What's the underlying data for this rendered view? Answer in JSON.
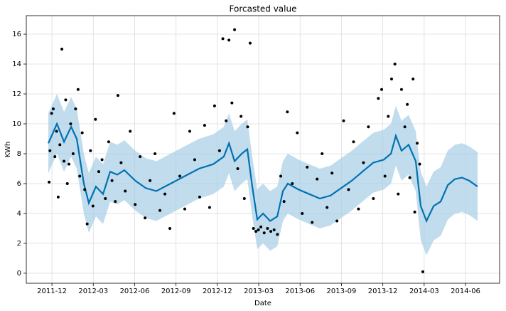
{
  "chart_data": {
    "type": "line",
    "title": "Forcasted value",
    "x_label": "Date",
    "y_label": "KWh",
    "grid": true,
    "xlim": [
      2011.762,
      2014.623
    ],
    "ylim": [
      -0.67,
      17.24
    ],
    "yticks": [
      0,
      2,
      4,
      6,
      8,
      10,
      12,
      14,
      16
    ],
    "xticks": [
      {
        "value": 2011.917,
        "label": "2011-12"
      },
      {
        "value": 2012.167,
        "label": "2012-03"
      },
      {
        "value": 2012.417,
        "label": "2012-06"
      },
      {
        "value": 2012.667,
        "label": "2012-09"
      },
      {
        "value": 2012.917,
        "label": "2012-12"
      },
      {
        "value": 2013.167,
        "label": "2013-03"
      },
      {
        "value": 2013.417,
        "label": "2013-06"
      },
      {
        "value": 2013.667,
        "label": "2013-09"
      },
      {
        "value": 2013.917,
        "label": "2013-12"
      },
      {
        "value": 2014.167,
        "label": "2014-03"
      },
      {
        "value": 2014.417,
        "label": "2014-06"
      }
    ],
    "forecast": {
      "color": "#0072b2",
      "band_color": "#a6cde6",
      "x": [
        2011.895,
        2011.947,
        2011.99,
        2012.033,
        2012.067,
        2012.11,
        2012.14,
        2012.183,
        2012.226,
        2012.269,
        2012.312,
        2012.355,
        2012.42,
        2012.484,
        2012.548,
        2012.634,
        2012.72,
        2012.806,
        2012.892,
        2012.956,
        2012.987,
        2013.021,
        2013.064,
        2013.098,
        2013.128,
        2013.158,
        2013.193,
        2013.236,
        2013.279,
        2013.313,
        2013.343,
        2013.408,
        2013.472,
        2013.536,
        2013.601,
        2013.665,
        2013.73,
        2013.794,
        2013.859,
        2013.923,
        2013.966,
        2013.996,
        2014.03,
        2014.073,
        2014.116,
        2014.146,
        2014.181,
        2014.224,
        2014.267,
        2014.31,
        2014.353,
        2014.396,
        2014.439,
        2014.49
      ],
      "values": [
        8.7,
        10.0,
        8.8,
        9.8,
        9.0,
        6.0,
        4.7,
        5.8,
        5.3,
        6.8,
        6.6,
        6.9,
        6.2,
        5.7,
        5.5,
        6.0,
        6.5,
        7.0,
        7.3,
        7.8,
        8.7,
        7.5,
        8.0,
        8.3,
        5.8,
        3.6,
        4.0,
        3.5,
        3.8,
        5.5,
        6.0,
        5.6,
        5.3,
        5.0,
        5.2,
        5.7,
        6.2,
        6.8,
        7.4,
        7.6,
        8.0,
        9.2,
        8.2,
        8.6,
        7.5,
        4.5,
        3.5,
        4.5,
        4.8,
        5.9,
        6.3,
        6.4,
        6.2,
        5.8
      ],
      "lower": [
        6.7,
        8.0,
        6.8,
        7.8,
        7.0,
        4.0,
        2.7,
        3.8,
        3.3,
        4.8,
        4.6,
        4.9,
        4.2,
        3.7,
        3.5,
        4.0,
        4.5,
        5.0,
        5.3,
        5.8,
        6.7,
        5.5,
        6.0,
        6.3,
        3.8,
        1.6,
        2.0,
        1.5,
        1.8,
        3.5,
        4.0,
        3.6,
        3.3,
        3.0,
        3.2,
        3.7,
        4.2,
        4.8,
        5.4,
        5.6,
        6.0,
        7.2,
        6.2,
        6.6,
        5.5,
        2.2,
        1.2,
        2.2,
        2.5,
        3.6,
        4.0,
        4.1,
        3.9,
        3.5
      ],
      "upper": [
        10.7,
        12.0,
        10.8,
        11.8,
        11.0,
        8.0,
        6.7,
        7.8,
        7.3,
        8.8,
        8.6,
        8.9,
        8.2,
        7.7,
        7.5,
        8.0,
        8.5,
        9.0,
        9.3,
        9.8,
        10.7,
        9.5,
        10.0,
        10.3,
        7.8,
        5.6,
        6.0,
        5.5,
        5.8,
        7.5,
        8.0,
        7.6,
        7.3,
        7.0,
        7.2,
        7.7,
        8.2,
        8.8,
        9.4,
        9.6,
        10.0,
        11.2,
        10.2,
        10.6,
        9.5,
        6.8,
        5.8,
        6.8,
        7.1,
        8.2,
        8.6,
        8.7,
        8.5,
        8.1
      ]
    },
    "observed": {
      "color": "#000000",
      "x": [
        2011.9,
        2011.905,
        2011.915,
        2011.925,
        2011.935,
        2011.945,
        2011.955,
        2011.965,
        2011.977,
        2011.99,
        2012.0,
        2012.01,
        2012.02,
        2012.03,
        2012.045,
        2012.06,
        2012.075,
        2012.085,
        2012.1,
        2012.115,
        2012.13,
        2012.15,
        2012.165,
        2012.18,
        2012.2,
        2012.22,
        2012.24,
        2012.26,
        2012.28,
        2012.3,
        2012.316,
        2012.335,
        2012.36,
        2012.39,
        2012.42,
        2012.45,
        2012.48,
        2012.51,
        2012.54,
        2012.57,
        2012.6,
        2012.63,
        2012.655,
        2012.69,
        2012.72,
        2012.75,
        2012.78,
        2012.81,
        2012.84,
        2012.87,
        2012.9,
        2012.93,
        2012.95,
        2012.97,
        2012.987,
        2013.005,
        2013.021,
        2013.04,
        2013.06,
        2013.08,
        2013.1,
        2013.115,
        2013.135,
        2013.15,
        2013.165,
        2013.18,
        2013.2,
        2013.22,
        2013.24,
        2013.26,
        2013.28,
        2013.3,
        2013.32,
        2013.34,
        2013.37,
        2013.4,
        2013.43,
        2013.46,
        2013.49,
        2013.52,
        2013.55,
        2013.58,
        2013.61,
        2013.64,
        2013.68,
        2013.71,
        2013.74,
        2013.77,
        2013.8,
        2013.83,
        2013.86,
        2013.89,
        2013.91,
        2013.93,
        2013.95,
        2013.97,
        2013.99,
        2014.01,
        2014.03,
        2014.05,
        2014.065,
        2014.08,
        2014.1,
        2014.11,
        2014.125,
        2014.14,
        2014.159
      ],
      "values": [
        6.1,
        8.2,
        10.7,
        11.0,
        7.8,
        9.5,
        5.1,
        8.6,
        15.0,
        7.5,
        11.6,
        6.0,
        7.3,
        10.0,
        8.0,
        11.0,
        12.3,
        6.5,
        9.4,
        5.6,
        3.3,
        8.2,
        4.5,
        10.3,
        6.8,
        7.6,
        5.0,
        8.8,
        6.2,
        4.8,
        11.9,
        7.4,
        5.5,
        9.5,
        4.6,
        7.8,
        3.7,
        6.2,
        8.0,
        4.2,
        5.3,
        3.0,
        10.7,
        6.5,
        4.3,
        9.5,
        7.6,
        5.1,
        9.9,
        4.4,
        11.2,
        8.2,
        15.7,
        10.2,
        15.6,
        11.4,
        16.3,
        7.0,
        10.5,
        5.0,
        9.8,
        15.4,
        3.0,
        2.8,
        2.9,
        3.1,
        2.7,
        3.0,
        2.8,
        2.9,
        2.6,
        6.5,
        4.8,
        10.8,
        6.0,
        9.4,
        4.0,
        7.1,
        3.4,
        6.3,
        8.0,
        4.4,
        6.7,
        3.5,
        10.2,
        5.6,
        8.8,
        4.3,
        7.4,
        9.8,
        5.0,
        11.7,
        12.3,
        6.5,
        10.5,
        13.0,
        14.0,
        5.3,
        12.3,
        9.8,
        11.3,
        6.4,
        13.0,
        4.1,
        8.7,
        7.3,
        0.1
      ]
    }
  }
}
